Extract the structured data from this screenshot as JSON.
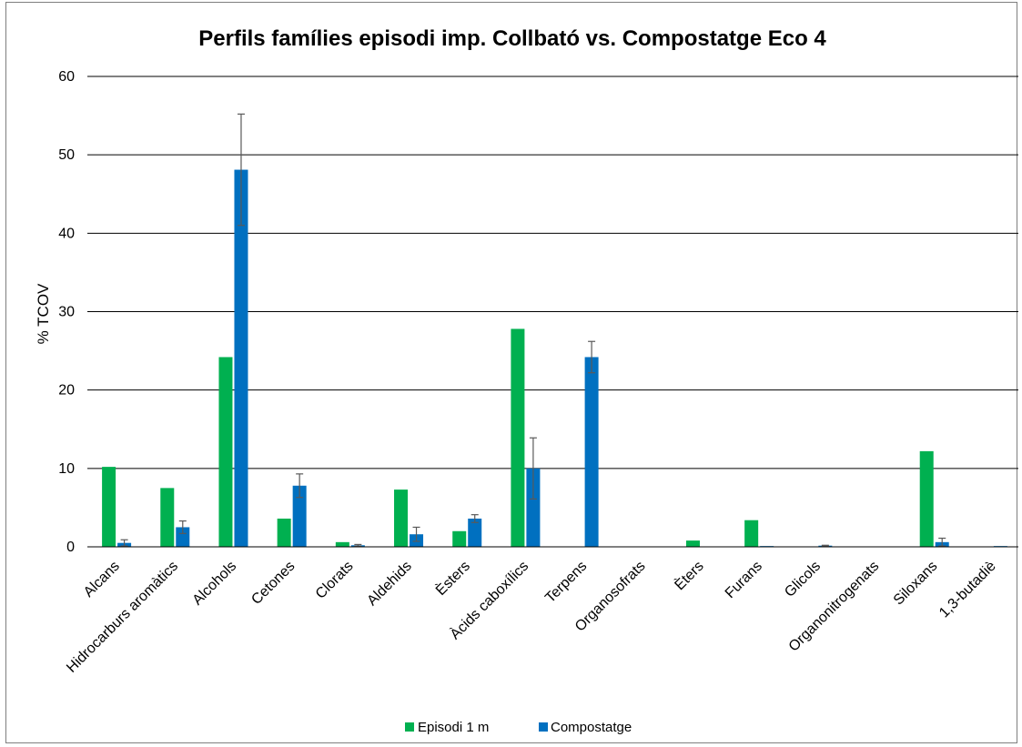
{
  "chart_data": {
    "type": "bar",
    "title": "Perfils famílies episodi imp. Collbató vs. Compostatge Eco 4",
    "xlabel": "",
    "ylabel": "% TCOV",
    "ylim": [
      0,
      60
    ],
    "yticks": [
      0,
      10,
      20,
      30,
      40,
      50,
      60
    ],
    "grid": true,
    "legend_position": "bottom",
    "categories": [
      "Alcans",
      "Hidrocarburs aromàtics",
      "Alcohols",
      "Cetones",
      "Clorats",
      "Aldehids",
      "Èsters",
      "Àcids caboxílics",
      "Terpens",
      "Organosofrats",
      "Èters",
      "Furans",
      "Glicols",
      "Organonitrogenats",
      "Siloxans",
      "1,3-butadiè"
    ],
    "series": [
      {
        "name": "Episodi 1 m",
        "color": "#00b050",
        "values": [
          10.2,
          7.5,
          24.2,
          3.6,
          0.6,
          7.3,
          2.0,
          27.8,
          0,
          0,
          0.8,
          3.4,
          0,
          0,
          12.2,
          0
        ],
        "errors": [
          0,
          0,
          0,
          0,
          0,
          0,
          0,
          0,
          0,
          0,
          0,
          0,
          0,
          0,
          0,
          0
        ]
      },
      {
        "name": "Compostatge",
        "color": "#0070c0",
        "values": [
          0.5,
          2.5,
          48.1,
          7.8,
          0.2,
          1.6,
          3.6,
          10.0,
          24.2,
          0.05,
          0,
          0.1,
          0.15,
          0.05,
          0.6,
          0.1
        ],
        "errors": [
          0.4,
          0.8,
          7.1,
          1.5,
          0.1,
          0.9,
          0.5,
          3.9,
          2.0,
          0,
          0,
          0,
          0.05,
          0,
          0.5,
          0
        ]
      }
    ]
  }
}
